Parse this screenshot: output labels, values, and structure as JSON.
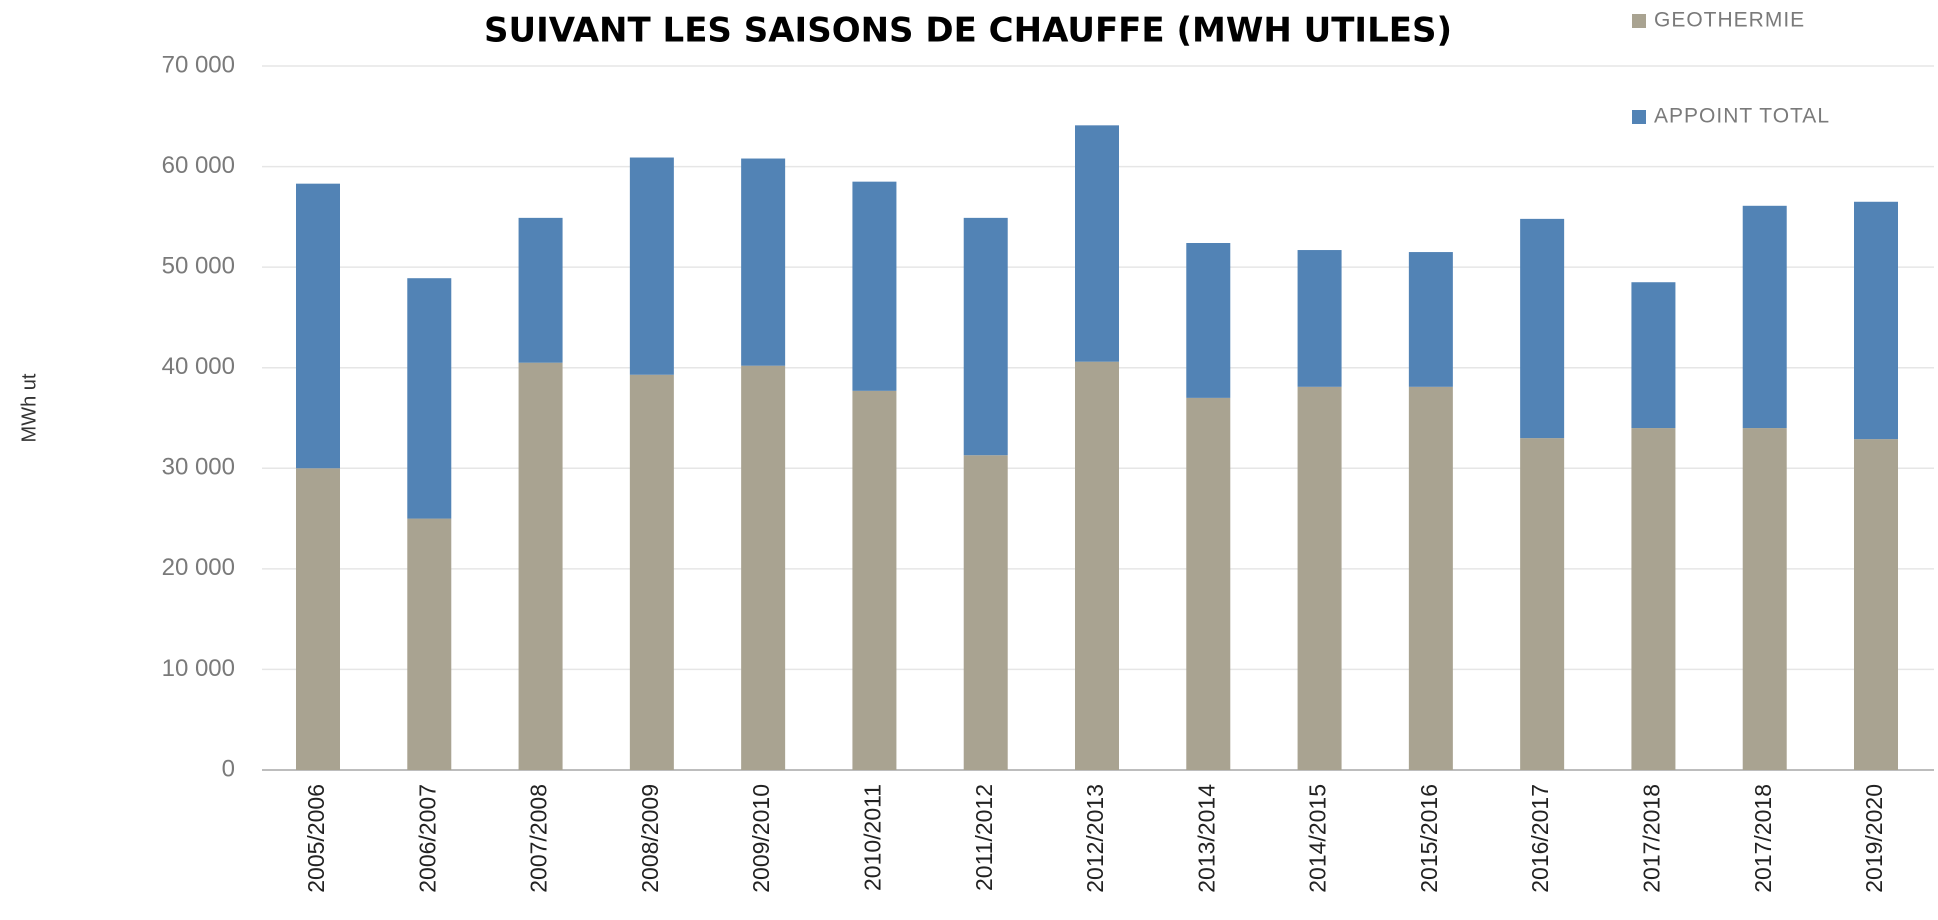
{
  "chart_data": {
    "type": "stacked_bar",
    "title": "SUIVANT LES SAISONS DE CHAUFFE (MWH UTILES)",
    "y_label": "MWh ut",
    "categories": [
      "2005/2006",
      "2006/2007",
      "2007/2008",
      "2008/2009",
      "2009/2010",
      "2010/2011",
      "2011/2012",
      "2012/2013",
      "2013/2014",
      "2014/2015",
      "2015/2016",
      "2016/2017",
      "2017/2018",
      "2017/2018",
      "2019/2020"
    ],
    "series": [
      {
        "name": "GEOTHERMIE",
        "color": "#a9a391",
        "values": [
          30000,
          25000,
          40500,
          39300,
          40200,
          37700,
          31300,
          40600,
          37000,
          38100,
          38100,
          33000,
          34000,
          34000,
          32900
        ]
      },
      {
        "name": "APPOINT  TOTAL",
        "color": "#5283b5",
        "values": [
          28300,
          23900,
          14400,
          21600,
          20600,
          20800,
          23600,
          23500,
          15400,
          13600,
          13400,
          21800,
          14500,
          22100,
          23600
        ]
      }
    ],
    "ylim": [
      0,
      70000
    ],
    "yticks": [
      {
        "value": 0,
        "label": "0"
      },
      {
        "value": 10000,
        "label": "10 000"
      },
      {
        "value": 20000,
        "label": "20 000"
      },
      {
        "value": 30000,
        "label": "30 000"
      },
      {
        "value": 40000,
        "label": "40 000"
      },
      {
        "value": 50000,
        "label": "50 000"
      },
      {
        "value": 60000,
        "label": "60 000"
      },
      {
        "value": 70000,
        "label": "70 000"
      }
    ],
    "grid": true,
    "legend": "top-right"
  }
}
